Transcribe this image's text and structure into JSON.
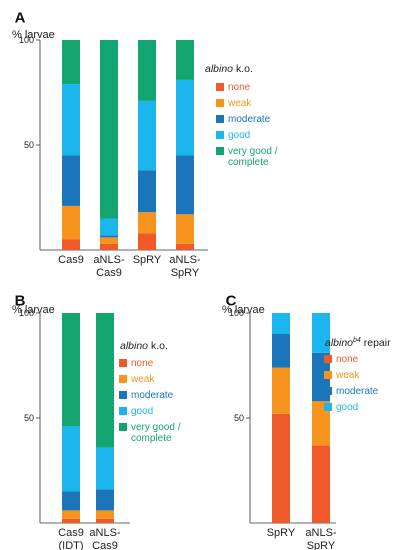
{
  "chart_data": [
    {
      "panel": "A",
      "type": "bar",
      "stacked": true,
      "ylabel": "% larvae",
      "ylim": [
        0,
        100
      ],
      "yticks": [
        "100",
        "50"
      ],
      "categories": [
        [
          "Cas9"
        ],
        [
          "aNLS-",
          "Cas9"
        ],
        [
          "SpRY"
        ],
        [
          "aNLS-",
          "SpRY"
        ]
      ],
      "legend": {
        "title_italic": "albino",
        "title_rest": " k.o.",
        "placement": "right"
      },
      "series": [
        {
          "name": "none",
          "color": "#f05a28",
          "values": [
            5,
            3,
            8,
            3
          ]
        },
        {
          "name": "weak",
          "color": "#f7941d",
          "values": [
            16,
            3,
            10,
            14
          ]
        },
        {
          "name": "moderate",
          "color": "#1b75bb",
          "values": [
            24,
            1,
            20,
            28
          ]
        },
        {
          "name": "good",
          "color": "#1cb6ef",
          "values": [
            34,
            8,
            33,
            36
          ]
        },
        {
          "name": "very good / complete",
          "label_lines": [
            "very good /",
            "complete"
          ],
          "color": "#13a570",
          "values": [
            21,
            85,
            29,
            19
          ]
        }
      ]
    },
    {
      "panel": "B",
      "type": "bar",
      "stacked": true,
      "ylabel": "% larvae",
      "ylim": [
        0,
        100
      ],
      "yticks": [
        "100",
        "50"
      ],
      "categories": [
        [
          "Cas9",
          "(IDT)"
        ],
        [
          "aNLS-",
          "Cas9"
        ]
      ],
      "legend": {
        "title_italic": "albino",
        "title_rest": " k.o.",
        "placement": "right"
      },
      "series": [
        {
          "name": "none",
          "color": "#f05a28",
          "values": [
            2,
            2
          ]
        },
        {
          "name": "weak",
          "color": "#f7941d",
          "values": [
            4,
            4
          ]
        },
        {
          "name": "moderate",
          "color": "#1b75bb",
          "values": [
            9,
            10
          ]
        },
        {
          "name": "good",
          "color": "#1cb6ef",
          "values": [
            31,
            20
          ]
        },
        {
          "name": "very good / complete",
          "label_lines": [
            "very good /",
            "complete"
          ],
          "color": "#13a570",
          "values": [
            54,
            64
          ]
        }
      ]
    },
    {
      "panel": "C",
      "type": "bar",
      "stacked": true,
      "ylabel": "% larvae",
      "ylim": [
        0,
        100
      ],
      "yticks": [
        "100",
        "50"
      ],
      "categories": [
        [
          "SpRY"
        ],
        [
          "aNLS-",
          "SpRY"
        ]
      ],
      "legend": {
        "title_italic": "albino",
        "title_sup": "b4",
        "title_rest": " repair",
        "placement": "right"
      },
      "series": [
        {
          "name": "none",
          "color": "#f05a28",
          "values": [
            52,
            37
          ]
        },
        {
          "name": "weak",
          "color": "#f7941d",
          "values": [
            22,
            21
          ]
        },
        {
          "name": "moderate",
          "color": "#1b75bb",
          "values": [
            16,
            23
          ]
        },
        {
          "name": "good",
          "color": "#1cb6ef",
          "values": [
            10,
            19
          ]
        }
      ]
    }
  ]
}
